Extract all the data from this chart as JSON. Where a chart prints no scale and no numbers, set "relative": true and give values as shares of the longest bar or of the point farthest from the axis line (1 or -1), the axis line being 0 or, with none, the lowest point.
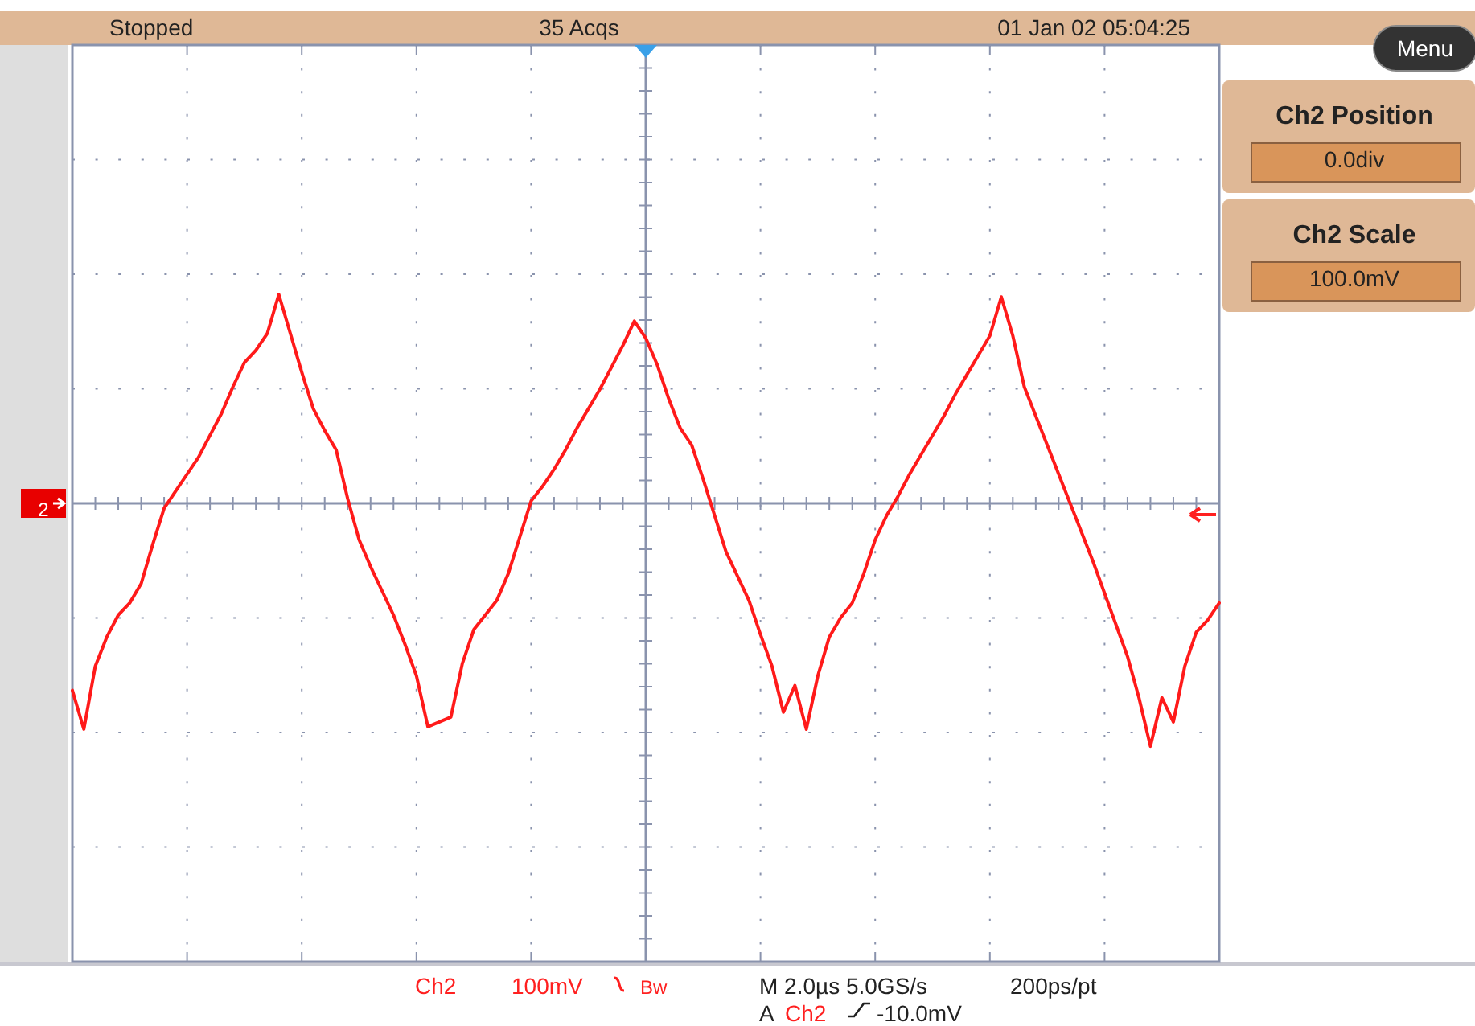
{
  "chart_data": {
    "type": "line",
    "relative": true,
    "grid": true,
    "line_style": "solid",
    "categories": [
      null,
      null,
      null,
      null,
      null,
      null,
      null,
      null,
      null,
      null,
      null,
      null,
      null,
      null,
      null,
      null,
      null,
      null,
      null,
      null,
      null,
      null,
      null,
      null,
      null,
      null,
      null,
      null,
      null,
      null,
      null,
      null,
      null,
      null,
      null,
      null,
      null,
      null,
      null,
      null,
      null,
      null,
      null,
      null,
      null,
      null,
      null,
      null,
      null,
      null,
      null,
      null,
      null,
      null,
      null,
      null,
      null,
      null,
      null,
      null,
      null,
      null,
      null,
      null,
      null,
      null,
      null,
      null,
      null,
      null,
      null,
      null,
      null,
      null,
      null,
      null,
      null,
      null,
      null,
      null,
      null,
      null,
      null,
      null,
      null,
      null,
      null,
      null,
      null,
      null,
      null,
      null,
      null,
      null,
      null,
      null,
      null,
      null,
      null,
      null,
      null
    ],
    "series": [
      {
        "color": "#ff1a1a",
        "values": [
          -0.77,
          -0.93,
          -0.67,
          -0.55,
          -0.46,
          -0.41,
          -0.33,
          -0.17,
          -0.02,
          0.05,
          0.12,
          0.19,
          0.28,
          0.37,
          0.48,
          0.58,
          0.63,
          0.7,
          0.86,
          0.7,
          0.54,
          0.39,
          0.3,
          0.22,
          0.02,
          -0.15,
          -0.26,
          -0.36,
          -0.46,
          -0.58,
          -0.71,
          -0.92,
          -0.9,
          -0.88,
          -0.66,
          -0.52,
          -0.46,
          -0.4,
          -0.29,
          -0.14,
          0.01,
          0.07,
          0.14,
          0.22,
          0.31,
          0.39,
          0.47,
          0.56,
          0.65,
          0.75,
          0.68,
          0.57,
          0.43,
          0.31,
          0.24,
          0.1,
          -0.05,
          -0.2,
          -0.3,
          -0.4,
          -0.54,
          -0.67,
          -0.86,
          -0.75,
          -0.93,
          -0.71,
          -0.55,
          -0.47,
          -0.41,
          -0.29,
          -0.15,
          -0.05,
          0.03,
          0.12,
          0.2,
          0.28,
          0.36,
          0.45,
          0.53,
          0.61,
          0.69,
          0.85,
          0.69,
          0.48,
          0.36,
          0.24,
          0.12,
          0,
          -0.12,
          -0.24,
          -0.37,
          -0.5,
          -0.63,
          -0.8,
          -1,
          -0.8,
          -0.9,
          -0.67,
          -0.53,
          -0.48,
          -0.41
        ]
      }
    ],
    "annotations": [
      "Stopped",
      "35 Acqs",
      "01 Jan 02 05:04:25",
      "Menu",
      "Ch2 Position",
      "0.0div",
      "Ch2 Scale",
      "100.0mV",
      "Ch2",
      "100mV",
      "Bw",
      "M 2.0µs 5.0GS/s",
      "200ps/pt",
      "A",
      "Ch2",
      "-10.0mV",
      "2"
    ]
  }
}
